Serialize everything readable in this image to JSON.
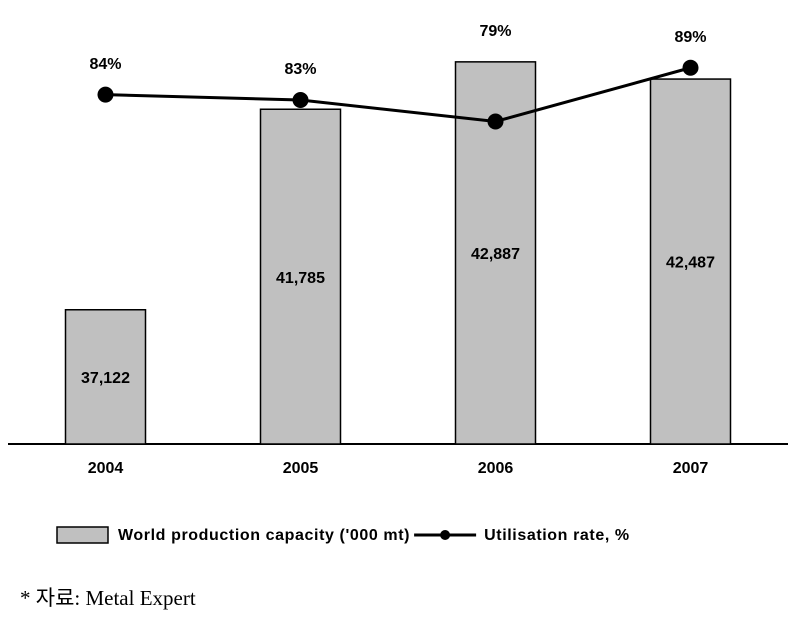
{
  "chart_data": {
    "type": "bar",
    "categories": [
      "2004",
      "2005",
      "2006",
      "2007"
    ],
    "series": [
      {
        "name": "World production capacity ('000 mt)",
        "type": "bar",
        "color": "#c0c0c0",
        "values": [
          37122,
          41785,
          42887,
          42487
        ],
        "value_labels": [
          "37,122",
          "41,785",
          "42,887",
          "42,487"
        ]
      },
      {
        "name": "Utilisation rate, %",
        "type": "line",
        "axis": "y2",
        "color": "#000000",
        "values": [
          84,
          83,
          79,
          89
        ],
        "value_labels": [
          "84%",
          "83%",
          "79%",
          "89%"
        ]
      }
    ],
    "ylim": [
      34000,
      44000
    ],
    "y2lim": [
      19,
      99
    ],
    "grid": false,
    "legend": "bottom"
  },
  "source": "* 자료:  Metal  Expert"
}
